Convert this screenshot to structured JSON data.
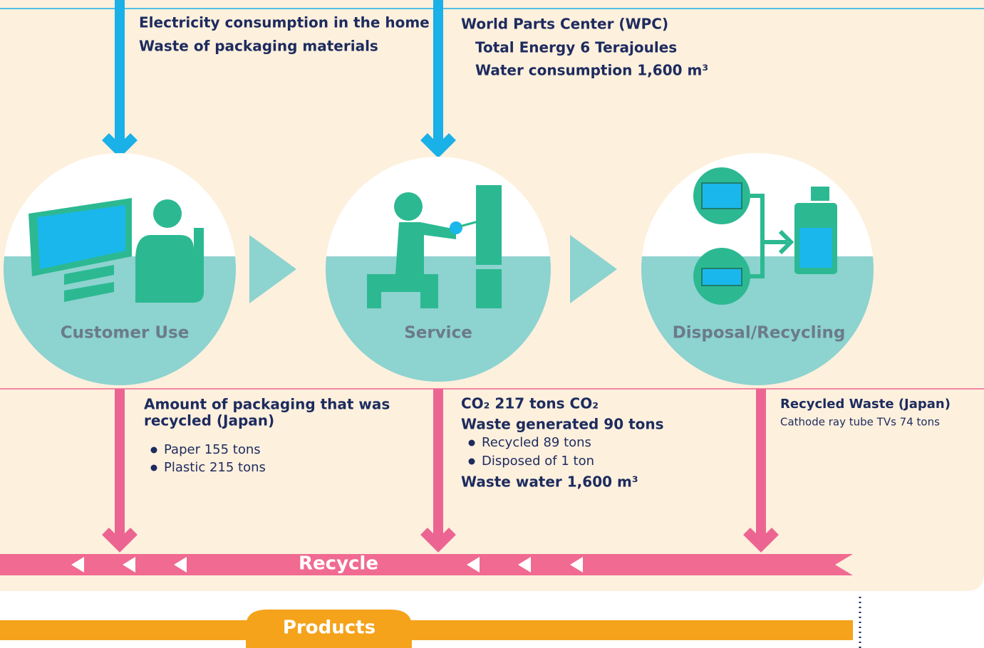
{
  "inputs": [
    {
      "lines": [
        "Electricity consumption in the home",
        "Waste of packaging materials"
      ]
    },
    {
      "title": "World Parts Center (WPC)",
      "lines": [
        "Total Energy 6 Terajoules",
        "Water consumption 1,600 m³"
      ]
    }
  ],
  "stages": [
    "Customer Use",
    "Service",
    "Disposal/Recycling"
  ],
  "outputs": [
    {
      "title": [
        "Amount of packaging that was",
        "recycled (Japan)"
      ],
      "bullets": [
        "Paper  155 tons",
        "Plastic 215 tons"
      ]
    },
    {
      "lines": [
        "CO₂ 217 tons CO₂",
        "Waste generated 90 tons"
      ],
      "bullets": [
        "Recycled  89 tons",
        "Disposed of 1 ton"
      ],
      "footer": "Waste water 1,600 m³"
    },
    {
      "title": [
        "Recycled Waste (Japan)"
      ],
      "lines": [
        "Cathode ray tube TVs 74 tons"
      ]
    }
  ],
  "recycle_label": "Recycle",
  "products_label": "Products"
}
